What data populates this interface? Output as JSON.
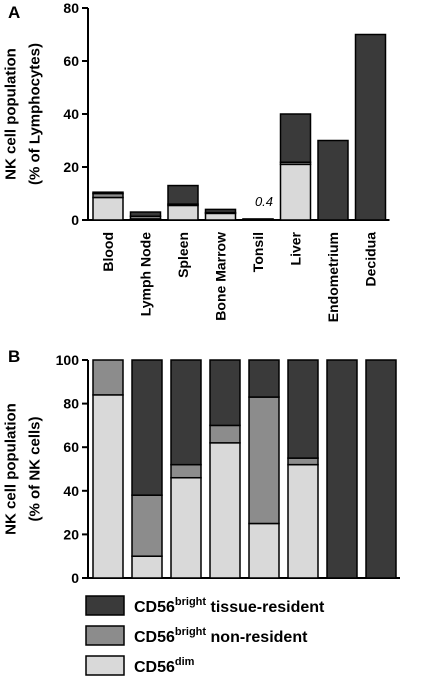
{
  "colors": {
    "tissue_resident": "#3a3a3a",
    "non_resident": "#8c8c8c",
    "dim": "#d9d9d9",
    "axis": "#000000"
  },
  "legend": [
    {
      "key": "tissue_resident",
      "base": "CD56",
      "sup": "bright",
      "rest": " tissue-resident"
    },
    {
      "key": "non_resident",
      "base": "CD56",
      "sup": "bright",
      "rest": " non-resident"
    },
    {
      "key": "dim",
      "base": "CD56",
      "sup": "dim",
      "rest": ""
    }
  ],
  "chart_data": [
    {
      "panel": "A",
      "type": "bar",
      "stacked": true,
      "ylabel_lines": [
        "NK cell population",
        "(% of Lymphocytes)"
      ],
      "ylim": [
        0,
        80
      ],
      "yticks": [
        0,
        20,
        40,
        60,
        80
      ],
      "categories": [
        "Blood",
        "Lymph Node",
        "Spleen",
        "Bone Marrow",
        "Tonsil",
        "Liver",
        "Endometrium",
        "Decidua"
      ],
      "series": [
        {
          "key": "dim",
          "values": [
            8.5,
            0.4,
            5.5,
            2.5,
            0.1,
            21,
            0,
            0
          ]
        },
        {
          "key": "non_resident",
          "values": [
            1.5,
            1.0,
            0.5,
            0.3,
            0.1,
            0.8,
            0,
            0
          ]
        },
        {
          "key": "tissue_resident",
          "values": [
            0.5,
            1.6,
            7.0,
            1.2,
            0.2,
            18.2,
            30,
            70
          ]
        }
      ],
      "annotations": [
        {
          "category": "Tonsil",
          "text": "0.4"
        }
      ]
    },
    {
      "panel": "B",
      "type": "bar",
      "stacked": true,
      "ylabel_lines": [
        "NK cell population",
        "(% of NK cells)"
      ],
      "ylim": [
        0,
        100
      ],
      "yticks": [
        0,
        20,
        40,
        60,
        80,
        100
      ],
      "categories": [
        "Blood",
        "Lymph Node",
        "Spleen",
        "Bone Marrow",
        "Tonsil",
        "Liver",
        "Endometrium",
        "Decidua"
      ],
      "series": [
        {
          "key": "dim",
          "values": [
            84,
            10,
            46,
            62,
            25,
            52,
            0,
            0
          ]
        },
        {
          "key": "non_resident",
          "values": [
            16,
            28,
            6,
            8,
            58,
            3,
            0,
            0
          ]
        },
        {
          "key": "tissue_resident",
          "values": [
            0,
            62,
            48,
            30,
            17,
            45,
            100,
            100
          ]
        }
      ]
    }
  ]
}
